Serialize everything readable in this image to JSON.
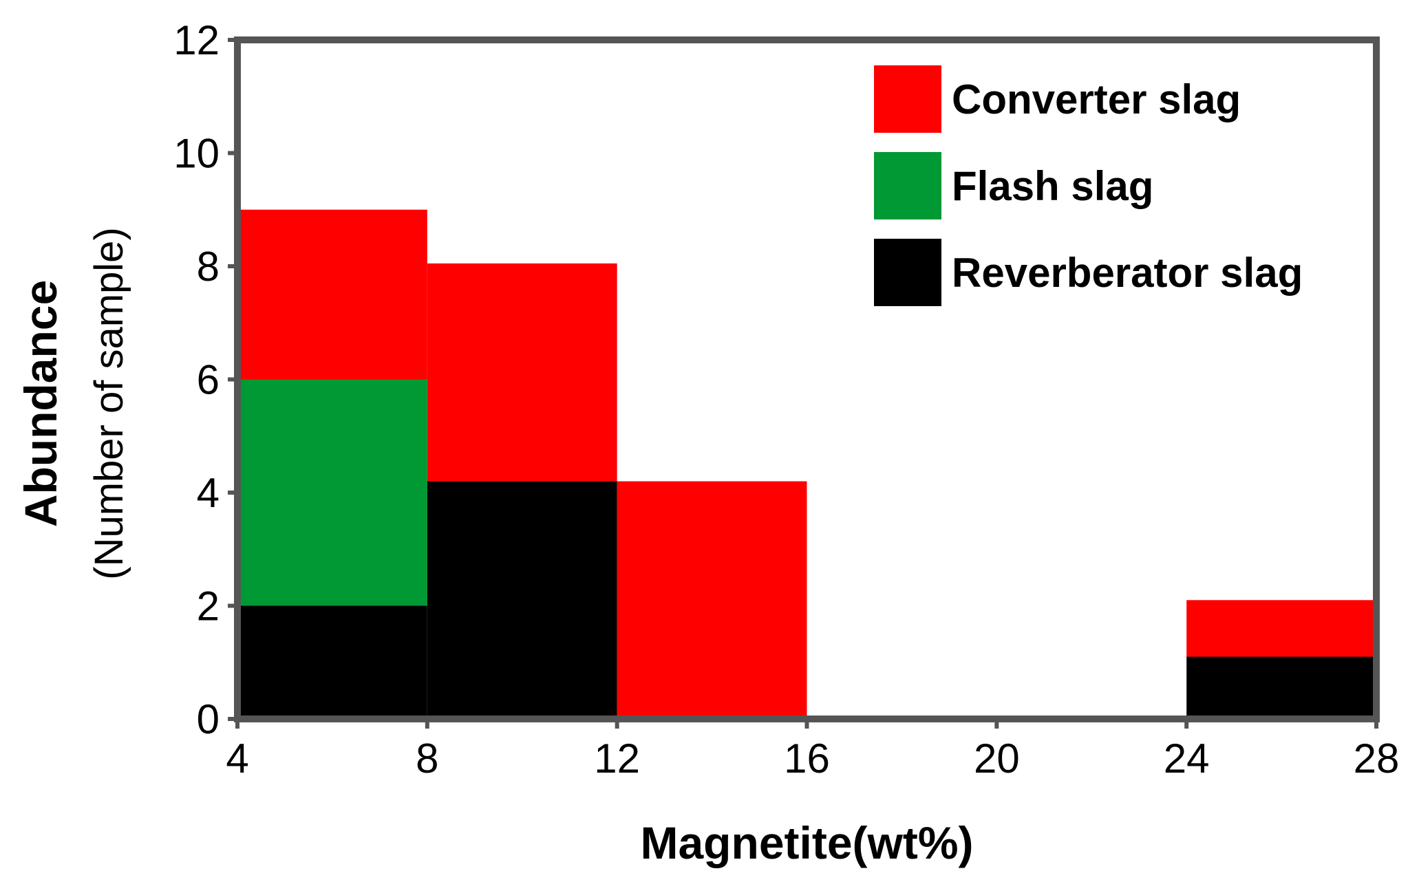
{
  "chart_data": {
    "type": "bar",
    "stacked": true,
    "bin_edges": [
      4,
      8,
      12,
      16,
      20,
      24,
      28
    ],
    "xlabel": "Magnetite(wt%)",
    "ylabel": "Abundance",
    "ylabel_sub": "(Number of sample)",
    "xlim": [
      4,
      28
    ],
    "ylim": [
      0,
      12
    ],
    "xticks": [
      4,
      8,
      12,
      16,
      20,
      24,
      28
    ],
    "yticks": [
      0,
      2,
      4,
      6,
      8,
      10,
      12
    ],
    "grid": false,
    "legend_position": "top-right",
    "series": [
      {
        "name": "Reverberator slag",
        "color": "#000000",
        "values": [
          2,
          4.2,
          0,
          0,
          0,
          1.1
        ]
      },
      {
        "name": "Flash slag",
        "color": "#009933",
        "values": [
          4,
          0,
          0,
          0,
          0,
          0
        ]
      },
      {
        "name": "Converter slag",
        "color": "#ff0000",
        "values": [
          3,
          3.85,
          4.2,
          0,
          0,
          1
        ]
      }
    ],
    "legend_order": [
      "Converter slag",
      "Flash slag",
      "Reverberator slag"
    ]
  }
}
